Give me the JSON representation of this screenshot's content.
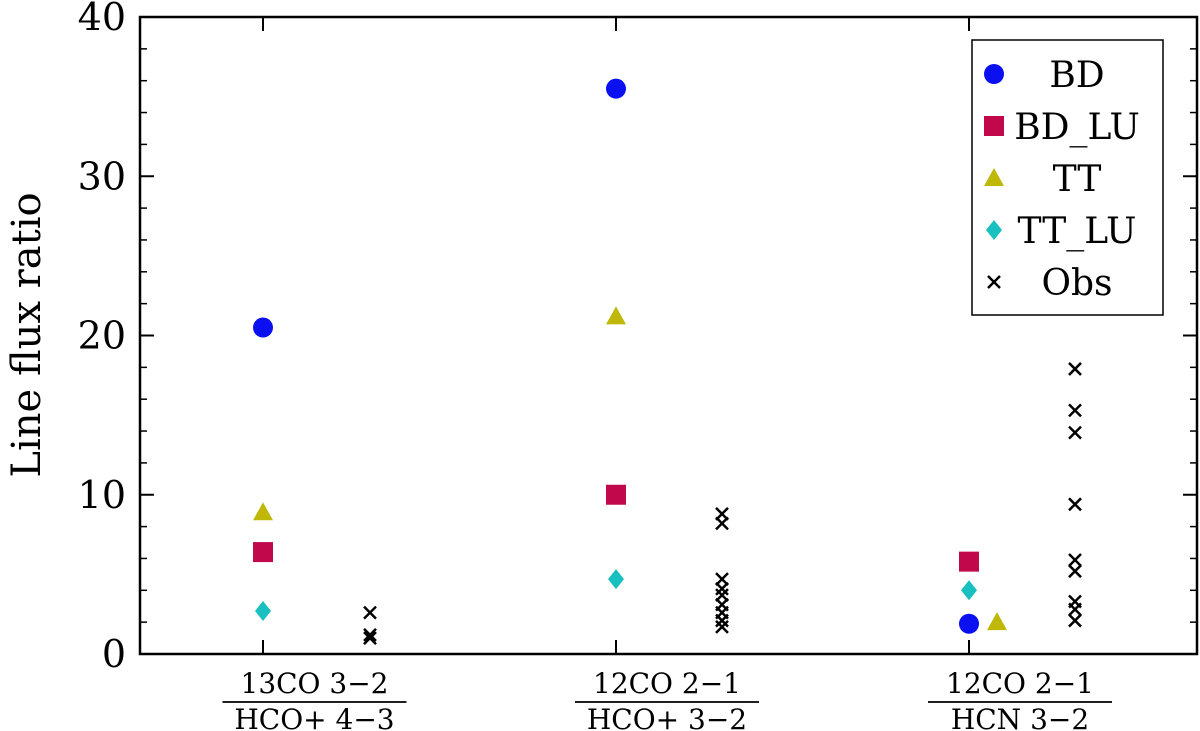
{
  "chart_data": {
    "type": "scatter",
    "ylabel": "Line flux ratio",
    "ylim": [
      0,
      40
    ],
    "yticks": [
      0,
      10,
      20,
      30,
      40
    ],
    "grid": false,
    "legend_position": "top-right",
    "categories": [
      {
        "numerator": "13CO 3−2",
        "denominator": "HCO+ 4−3"
      },
      {
        "numerator": "12CO 2−1",
        "denominator": "HCO+ 3−2"
      },
      {
        "numerator": "12CO 2−1",
        "denominator": "HCN 3−2"
      }
    ],
    "series": [
      {
        "name": "BD",
        "marker": "circle",
        "color": "#0a10f0",
        "points": [
          {
            "category": 0,
            "y": 20.5
          },
          {
            "category": 1,
            "y": 35.5
          },
          {
            "category": 2,
            "y": 1.9
          }
        ]
      },
      {
        "name": "BD_LU",
        "marker": "square",
        "color": "#c0084a",
        "points": [
          {
            "category": 0,
            "y": 6.4
          },
          {
            "category": 1,
            "y": 10.0
          },
          {
            "category": 2,
            "y": 5.8
          }
        ]
      },
      {
        "name": "TT",
        "marker": "triangle",
        "color": "#c0b808",
        "points": [
          {
            "category": 0,
            "y": 8.9
          },
          {
            "category": 1,
            "y": 21.2
          },
          {
            "category": 2,
            "y": 2.0
          }
        ]
      },
      {
        "name": "TT_LU",
        "marker": "diamond",
        "color": "#18c0c0",
        "points": [
          {
            "category": 0,
            "y": 2.7
          },
          {
            "category": 1,
            "y": 4.7
          },
          {
            "category": 2,
            "y": 4.0
          }
        ]
      },
      {
        "name": "Obs",
        "marker": "x",
        "color": "#000000",
        "points": [
          {
            "category": 0,
            "y": 2.6
          },
          {
            "category": 0,
            "y": 1.2
          },
          {
            "category": 0,
            "y": 1.0
          },
          {
            "category": 1,
            "y": 8.8
          },
          {
            "category": 1,
            "y": 8.2
          },
          {
            "category": 1,
            "y": 4.7
          },
          {
            "category": 1,
            "y": 4.1
          },
          {
            "category": 1,
            "y": 3.7
          },
          {
            "category": 1,
            "y": 3.1
          },
          {
            "category": 1,
            "y": 2.6
          },
          {
            "category": 1,
            "y": 2.1
          },
          {
            "category": 1,
            "y": 1.7
          },
          {
            "category": 2,
            "y": 17.9
          },
          {
            "category": 2,
            "y": 15.3
          },
          {
            "category": 2,
            "y": 13.9
          },
          {
            "category": 2,
            "y": 9.4
          },
          {
            "category": 2,
            "y": 5.9
          },
          {
            "category": 2,
            "y": 5.2
          },
          {
            "category": 2,
            "y": 3.3
          },
          {
            "category": 2,
            "y": 2.8
          },
          {
            "category": 2,
            "y": 2.1
          }
        ]
      }
    ]
  }
}
